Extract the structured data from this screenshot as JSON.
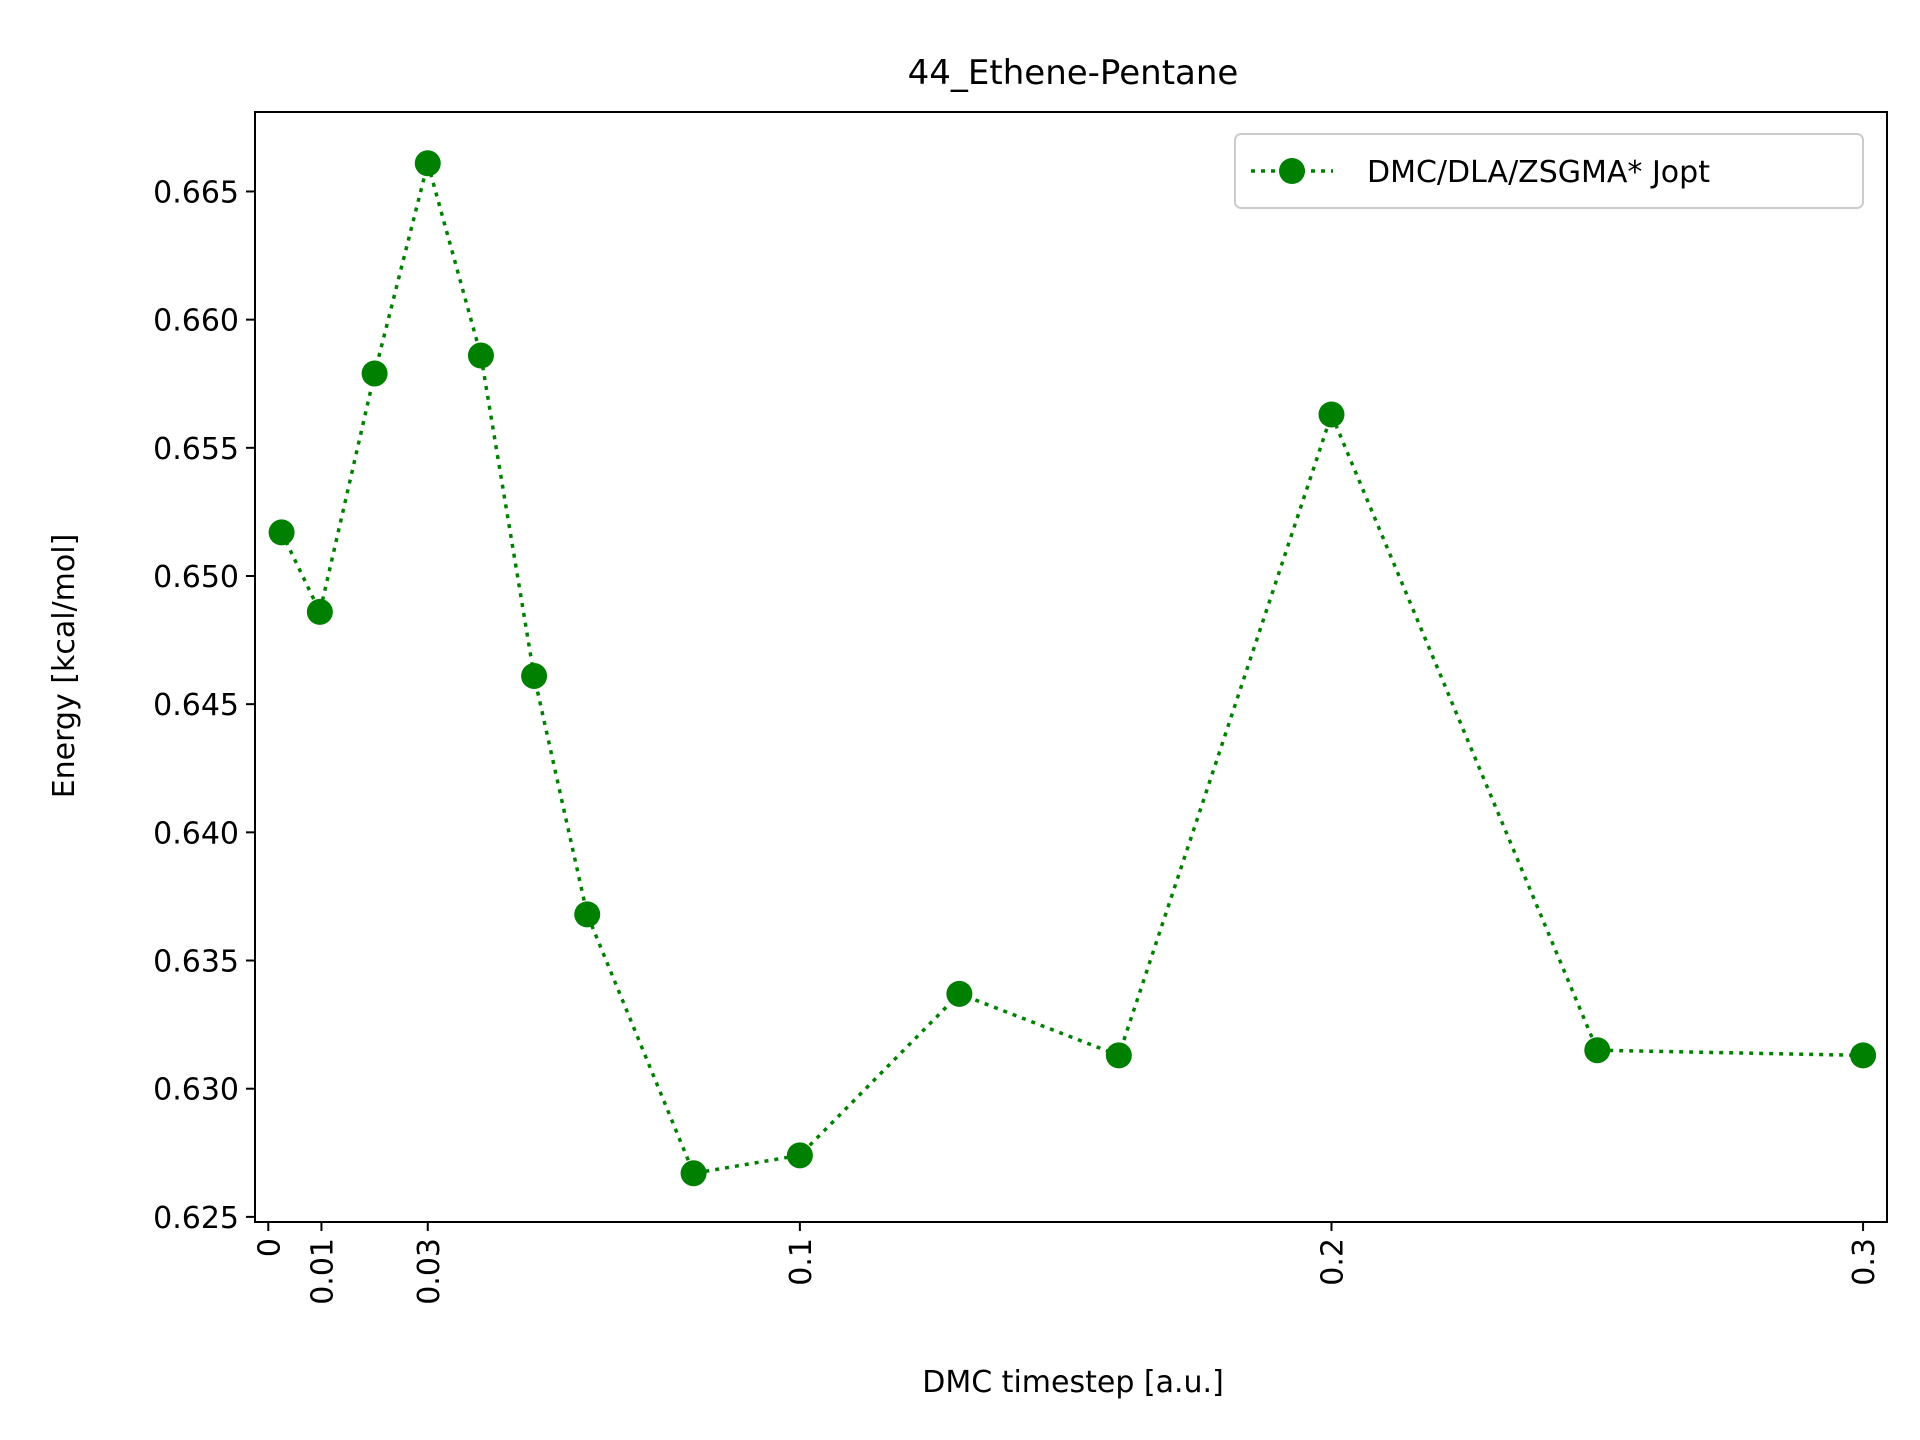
{
  "chart_data": {
    "type": "line",
    "title": "44_Ethene-Pentane",
    "xlabel": "DMC timestep [a.u.]",
    "ylabel": "Energy [kcal/mol]",
    "xlim": [
      -0.0025,
      0.3045
    ],
    "ylim": [
      0.6248,
      0.6681
    ],
    "x_ticks": [
      {
        "value": 0,
        "label": "0"
      },
      {
        "value": 0.01,
        "label": "0.01"
      },
      {
        "value": 0.03,
        "label": "0.03"
      },
      {
        "value": 0.1,
        "label": "0.1"
      },
      {
        "value": 0.2,
        "label": "0.2"
      },
      {
        "value": 0.3,
        "label": "0.3"
      }
    ],
    "y_ticks": [
      {
        "value": 0.625,
        "label": "0.625"
      },
      {
        "value": 0.63,
        "label": "0.630"
      },
      {
        "value": 0.635,
        "label": "0.635"
      },
      {
        "value": 0.64,
        "label": "0.640"
      },
      {
        "value": 0.645,
        "label": "0.645"
      },
      {
        "value": 0.65,
        "label": "0.650"
      },
      {
        "value": 0.655,
        "label": "0.655"
      },
      {
        "value": 0.66,
        "label": "0.660"
      },
      {
        "value": 0.665,
        "label": "0.665"
      }
    ],
    "grid": false,
    "legend_position": "top-right",
    "series": [
      {
        "name": "DMC/DLA/ZSGMA* Jopt",
        "color": "#008000",
        "line_style": "dotted",
        "marker": "circle",
        "x": [
          0.0025,
          0.0097,
          0.02,
          0.03,
          0.04,
          0.05,
          0.06,
          0.08,
          0.1,
          0.13,
          0.16,
          0.2,
          0.25,
          0.3
        ],
        "y": [
          0.6517,
          0.6486,
          0.6579,
          0.6661,
          0.6586,
          0.6461,
          0.6368,
          0.6267,
          0.6274,
          0.6337,
          0.6313,
          0.6563,
          0.6315,
          0.6313
        ]
      }
    ]
  }
}
